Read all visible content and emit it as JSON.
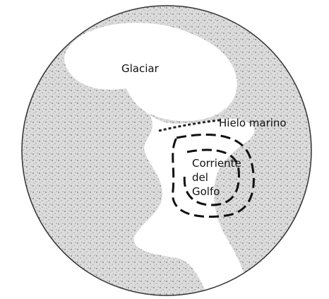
{
  "labels": {
    "glacier": "Glaciar",
    "sea_ice": "Hielo marino",
    "current": [
      "Corriente",
      "del",
      "Golfo"
    ]
  }
}
